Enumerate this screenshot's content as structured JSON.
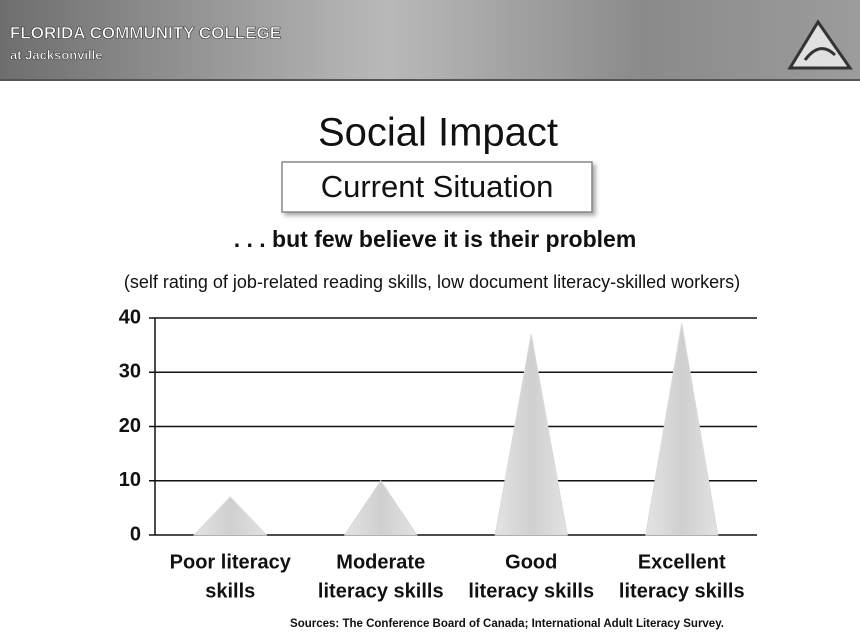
{
  "header": {
    "college": "Florida Community College",
    "campus": "at Jacksonville"
  },
  "chart_data": {
    "type": "cone",
    "title": "Social Impact",
    "subtitle": "Current Situation",
    "annotations": [
      ". . . but few believe it is their problem",
      "(self rating of job-related reading skills, low document literacy-skilled workers)"
    ],
    "source": "Sources: The Conference Board of Canada; International Adult Literacy Survey.",
    "categories": [
      [
        "Poor literacy",
        "skills"
      ],
      [
        "Moderate",
        "literacy skills"
      ],
      [
        "Good",
        "literacy skills"
      ],
      [
        "Excellent",
        "literacy skills"
      ]
    ],
    "values": [
      7,
      10,
      37,
      39
    ],
    "color": "#d9d9d9",
    "ylim": [
      0,
      40
    ],
    "yticks": [
      0,
      10,
      20,
      30,
      40
    ],
    "grid": true
  }
}
